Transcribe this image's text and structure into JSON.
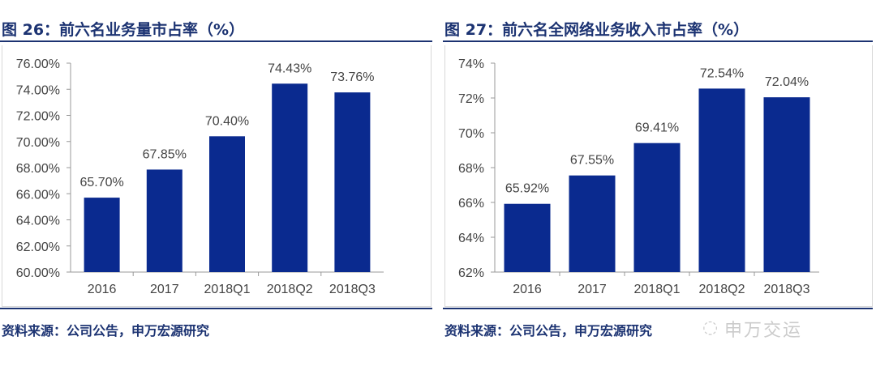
{
  "chart_data": [
    {
      "type": "bar",
      "title": "图 26：前六名业务量市占率（%）",
      "categories": [
        "2016",
        "2017",
        "2018Q1",
        "2018Q2",
        "2018Q3"
      ],
      "values": [
        65.7,
        67.85,
        70.4,
        74.43,
        73.76
      ],
      "data_labels": [
        "65.70%",
        "67.85%",
        "70.40%",
        "74.43%",
        "73.76%"
      ],
      "yticks": [
        "60.00%",
        "62.00%",
        "64.00%",
        "66.00%",
        "68.00%",
        "70.00%",
        "72.00%",
        "74.00%",
        "76.00%"
      ],
      "ylim": [
        60,
        76
      ],
      "grid": false,
      "bar_color": "#0a2a8f",
      "source": "资料来源：公司公告，申万宏源研究"
    },
    {
      "type": "bar",
      "title": "图 27：前六名全网络业务收入市占率（%）",
      "categories": [
        "2016",
        "2017",
        "2018Q1",
        "2018Q2",
        "2018Q3"
      ],
      "values": [
        65.92,
        67.55,
        69.41,
        72.54,
        72.04
      ],
      "data_labels": [
        "65.92%",
        "67.55%",
        "69.41%",
        "72.54%",
        "72.04%"
      ],
      "yticks": [
        "62%",
        "64%",
        "66%",
        "68%",
        "70%",
        "72%",
        "74%"
      ],
      "ylim": [
        62,
        74
      ],
      "grid": false,
      "bar_color": "#0a2a8f",
      "source": "资料来源：公司公告，申万宏源研究"
    }
  ],
  "watermark": "申万交运",
  "colors": {
    "title": "#1c3372",
    "bar": "#0a2a8f"
  }
}
